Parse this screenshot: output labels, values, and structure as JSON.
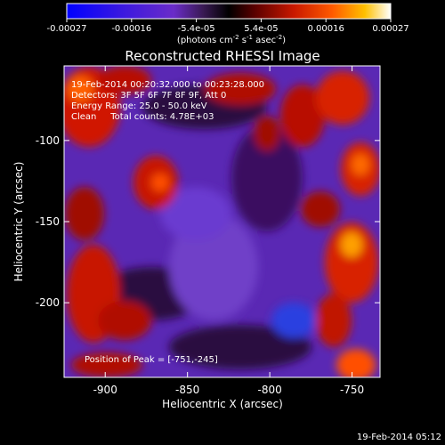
{
  "colorbar": {
    "tick_labels": [
      "-0.00027",
      "-0.00016",
      "-5.4e-05",
      "5.4e-05",
      "0.00016",
      "0.00027"
    ],
    "unit_prefix": "(photons cm",
    "unit_exp1": "-2",
    "unit_mid1": " s",
    "unit_exp2": "-1",
    "unit_mid2": " asec",
    "unit_exp3": "-2",
    "unit_suffix": ")"
  },
  "image": {
    "title": "Reconstructed RHESSI Image",
    "info_lines": [
      "19-Feb-2014 00:20:32.000 to 00:23:28.000",
      "Detectors: 3F 5F 6F 7F 8F 9F, Att 0",
      "Energy Range: 25.0 - 50.0 keV",
      "Clean     Total counts: 4.78E+03"
    ],
    "peak_label": "Position of Peak = [-751,-245]",
    "x_label": "Heliocentric X (arcsec)",
    "y_label": "Heliocentric Y (arcsec)",
    "x_ticks": [
      "-900",
      "-850",
      "-800",
      "-750"
    ],
    "y_ticks": [
      "-100",
      "-150",
      "-200"
    ],
    "x_tick_values": [
      -900,
      -850,
      -800,
      -750
    ],
    "y_tick_values": [
      -100,
      -150,
      -200
    ],
    "x_range": [
      -925,
      -733
    ],
    "y_range": [
      -246,
      -54
    ]
  },
  "footer": {
    "timestamp": "19-Feb-2014 05:12"
  }
}
